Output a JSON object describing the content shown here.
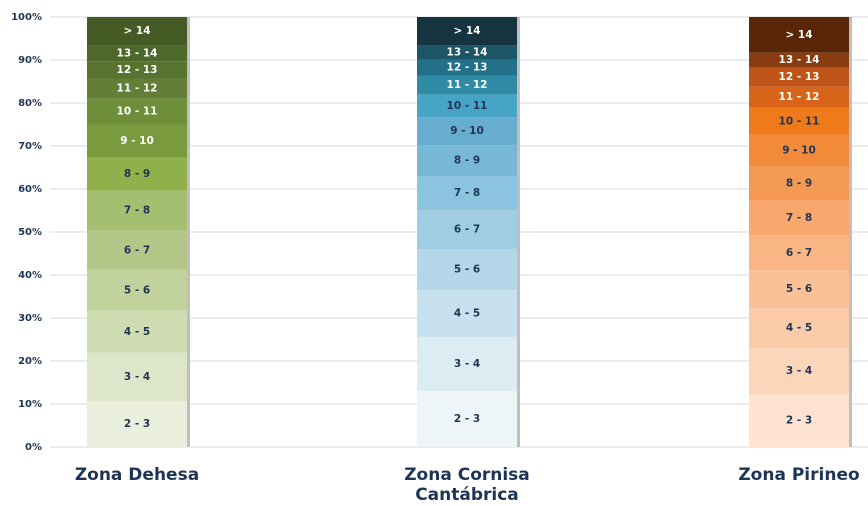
{
  "chart_data": {
    "type": "stacked_bar_100",
    "categories": [
      "Zona Dehesa",
      "Zona Cornisa Cantábrica",
      "Zona Pirineo"
    ],
    "ylim": [
      0,
      100
    ],
    "yticks": [
      {
        "value": 0,
        "label": "0%"
      },
      {
        "value": 10,
        "label": "10%"
      },
      {
        "value": 20,
        "label": "20%"
      },
      {
        "value": 30,
        "label": "30%"
      },
      {
        "value": 40,
        "label": "40%"
      },
      {
        "value": 50,
        "label": "50%"
      },
      {
        "value": 60,
        "label": "60%"
      },
      {
        "value": 70,
        "label": "70%"
      },
      {
        "value": 80,
        "label": "80%"
      },
      {
        "value": 90,
        "label": "90%"
      },
      {
        "value": 100,
        "label": "100%"
      }
    ],
    "grid": true,
    "series": [
      {
        "name": "2 - 3",
        "colors": [
          "#e9efdc",
          "#eef5f9",
          "#fde3d0"
        ],
        "values": [
          10.7,
          13.0,
          12.3
        ]
      },
      {
        "name": "3 - 4",
        "colors": [
          "#dde6c8",
          "#dcecf3",
          "#fcd6bb"
        ],
        "values": [
          11.2,
          12.6,
          10.7
        ]
      },
      {
        "name": "4 - 5",
        "colors": [
          "#cfdcb2",
          "#c8e1ee",
          "#fbcba8"
        ],
        "values": [
          9.8,
          10.9,
          9.3
        ]
      },
      {
        "name": "5 - 6",
        "colors": [
          "#c1d29c",
          "#b3d6e8",
          "#fac196"
        ],
        "values": [
          9.5,
          9.5,
          8.8
        ]
      },
      {
        "name": "6 - 7",
        "colors": [
          "#b3c888",
          "#a1cde3",
          "#f9b583"
        ],
        "values": [
          9.1,
          9.1,
          8.1
        ]
      },
      {
        "name": "7 - 8",
        "colors": [
          "#a3bf6f",
          "#8cc3df",
          "#f8a86c"
        ],
        "values": [
          9.3,
          7.9,
          8.1
        ]
      },
      {
        "name": "8 - 9",
        "colors": [
          "#8fb04a",
          "#78b8d7",
          "#f59a55"
        ],
        "values": [
          7.7,
          7.2,
          7.9
        ]
      },
      {
        "name": "9 - 10",
        "colors": [
          "#7a9a3e",
          "#67adcf",
          "#f38a3a"
        ],
        "values": [
          7.7,
          6.5,
          7.4
        ]
      },
      {
        "name": "10 - 11",
        "colors": [
          "#6e8e3a",
          "#48a4c4",
          "#ef7a1a"
        ],
        "values": [
          6.0,
          5.3,
          6.3
        ]
      },
      {
        "name": "11 - 12",
        "colors": [
          "#627f35",
          "#2f8aa6",
          "#d8641a"
        ],
        "values": [
          4.7,
          4.4,
          4.9
        ]
      },
      {
        "name": "12 - 13",
        "colors": [
          "#587330",
          "#23708a",
          "#bf5418"
        ],
        "values": [
          4.0,
          3.7,
          4.4
        ]
      },
      {
        "name": "13 - 14",
        "colors": [
          "#4e672b",
          "#1c5666",
          "#8a3d10"
        ],
        "values": [
          3.7,
          3.3,
          3.5
        ]
      },
      {
        "name": "> 14",
        "colors": [
          "#455b26",
          "#15343f",
          "#5a2608"
        ],
        "values": [
          6.6,
          6.6,
          8.3
        ]
      }
    ]
  }
}
